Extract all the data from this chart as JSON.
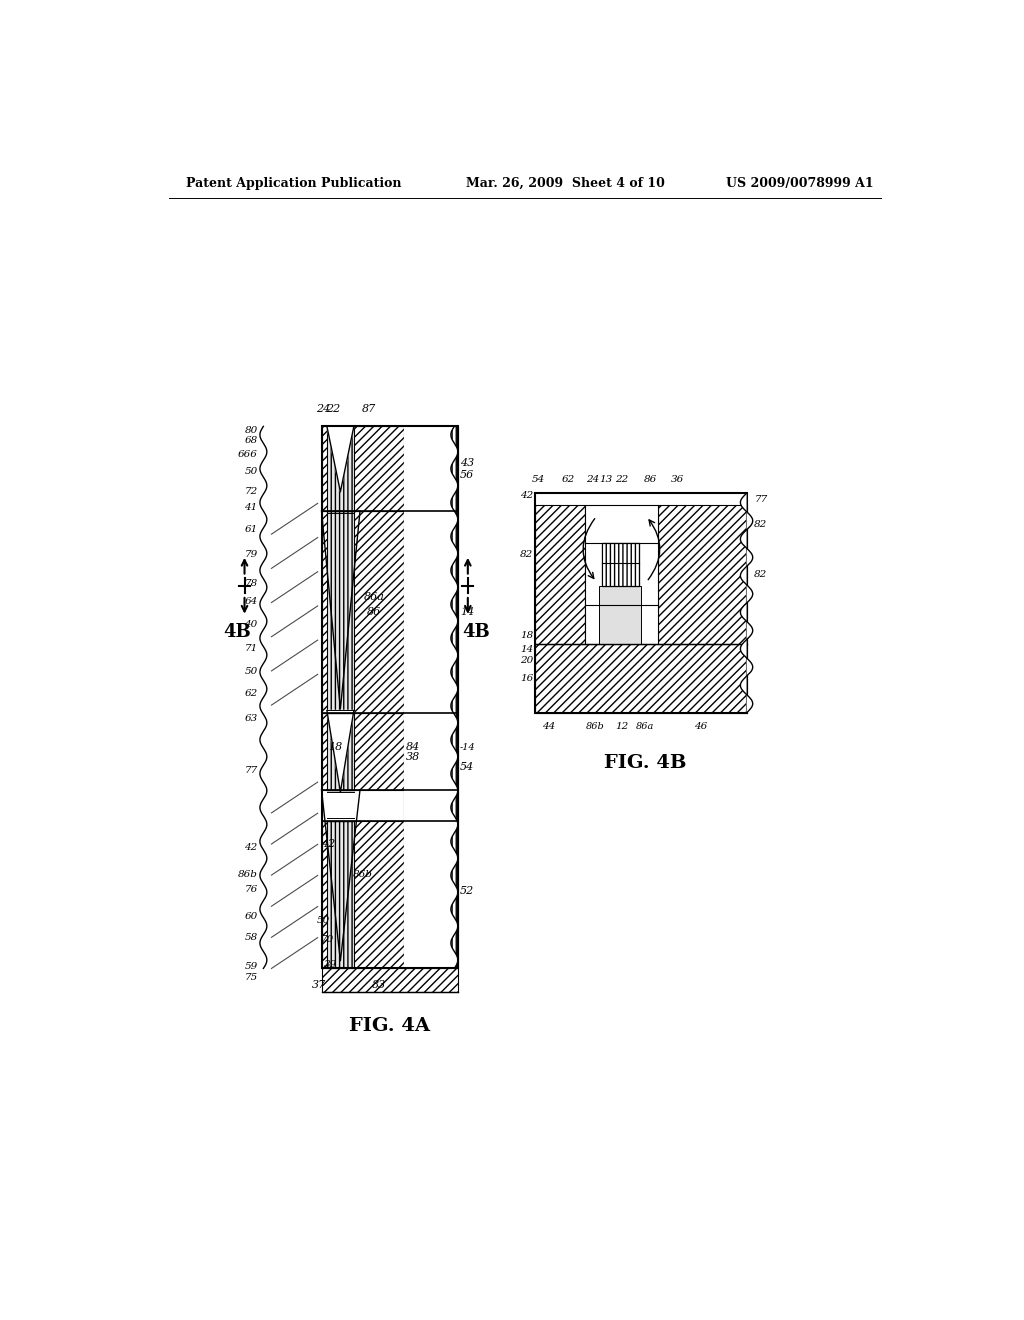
{
  "header_left": "Patent Application Publication",
  "header_mid": "Mar. 26, 2009  Sheet 4 of 10",
  "header_right": "US 2009/0078999 A1",
  "fig4a_label": "FIG. 4A",
  "fig4b_label": "FIG. 4B",
  "bg_color": "#ffffff"
}
